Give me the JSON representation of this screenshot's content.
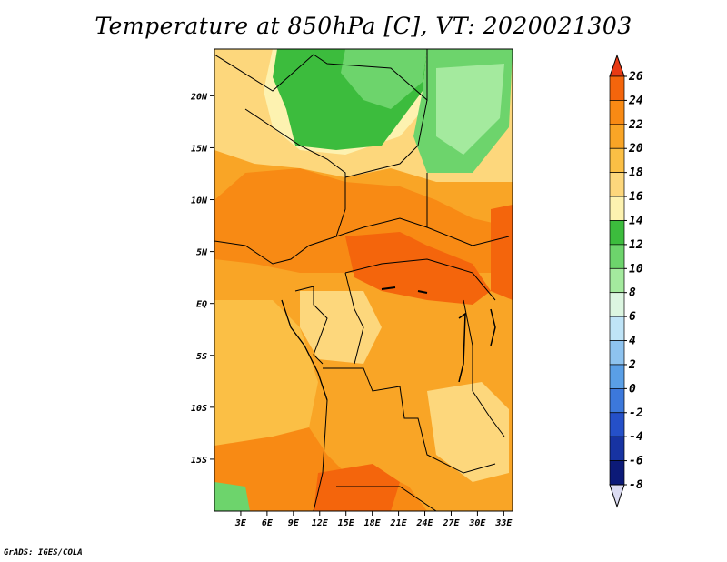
{
  "title": "Temperature at 850hPa [C], VT: 2020021303",
  "credit": "GrADS: IGES/COLA",
  "map": {
    "lon_range": [
      0,
      34
    ],
    "lat_range": [
      -20,
      24.5
    ],
    "lat_ticks": [
      {
        "value": 20,
        "label": "20N"
      },
      {
        "value": 15,
        "label": "15N"
      },
      {
        "value": 10,
        "label": "10N"
      },
      {
        "value": 5,
        "label": "5N"
      },
      {
        "value": 0,
        "label": "EQ"
      },
      {
        "value": -5,
        "label": "5S"
      },
      {
        "value": -10,
        "label": "10S"
      },
      {
        "value": -15,
        "label": "15S"
      }
    ],
    "lon_ticks": [
      {
        "value": 3,
        "label": "3E"
      },
      {
        "value": 6,
        "label": "6E"
      },
      {
        "value": 9,
        "label": "9E"
      },
      {
        "value": 12,
        "label": "12E"
      },
      {
        "value": 15,
        "label": "15E"
      },
      {
        "value": 18,
        "label": "18E"
      },
      {
        "value": 21,
        "label": "21E"
      },
      {
        "value": 24,
        "label": "24E"
      },
      {
        "value": 27,
        "label": "27E"
      },
      {
        "value": 30,
        "label": "30E"
      },
      {
        "value": 33,
        "label": "33E"
      }
    ]
  },
  "colorbar": {
    "levels": [
      "26",
      "24",
      "22",
      "20",
      "18",
      "16",
      "14",
      "12",
      "10",
      "8",
      "6",
      "4",
      "2",
      "0",
      "-2",
      "-4",
      "-6",
      "-8"
    ],
    "colors": [
      "#e83a14",
      "#f4650c",
      "#f88a14",
      "#f9a526",
      "#fbbf45",
      "#fdd77c",
      "#fdf2b0",
      "#3cbc3d",
      "#6dd46c",
      "#a4ea9e",
      "#dcf6e1",
      "#bfe4f7",
      "#8ec3ef",
      "#5a9fe6",
      "#3c78db",
      "#2550c8",
      "#1733a2",
      "#0c1a78",
      "#dcdcf2"
    ]
  },
  "colors": {
    "t24": "#f4650c",
    "t22": "#f88a14",
    "t20": "#f9a526",
    "t18": "#fbbf45",
    "t16": "#fdd77c",
    "t14": "#fdf2b0",
    "t12": "#3cbc3d",
    "t10": "#6dd46c",
    "t8": "#a4ea9e"
  }
}
